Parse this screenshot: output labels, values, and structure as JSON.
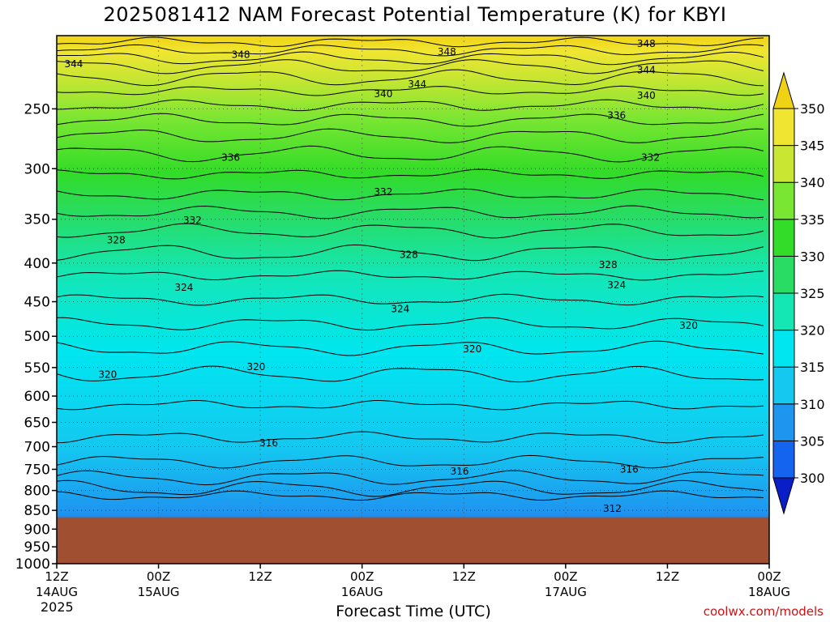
{
  "chart_data": {
    "type": "heatmap",
    "title": "2025081412 NAM Forecast Potential Temperature (K) for KBYI",
    "xlabel": "Forecast Time (UTC)",
    "ylabel": "",
    "y_scale": "log-pressure",
    "ylim_hpa": [
      1000,
      200
    ],
    "xlim_hours": [
      0,
      84
    ],
    "y_ticks": [
      "250",
      "300",
      "350",
      "400",
      "450",
      "500",
      "550",
      "600",
      "650",
      "700",
      "750",
      "800",
      "850",
      "900",
      "950",
      "1000"
    ],
    "x_ticks": [
      {
        "hour": 0,
        "line1": "12Z",
        "line2": "14AUG"
      },
      {
        "hour": 12,
        "line1": "00Z",
        "line2": "15AUG"
      },
      {
        "hour": 24,
        "line1": "12Z",
        "line2": ""
      },
      {
        "hour": 36,
        "line1": "00Z",
        "line2": "16AUG"
      },
      {
        "hour": 48,
        "line1": "12Z",
        "line2": ""
      },
      {
        "hour": 60,
        "line1": "00Z",
        "line2": "17AUG"
      },
      {
        "hour": 72,
        "line1": "12Z",
        "line2": ""
      },
      {
        "hour": 84,
        "line1": "00Z",
        "line2": "18AUG"
      }
    ],
    "year_label": "2025",
    "colorbar": {
      "ticks": [
        "350",
        "345",
        "340",
        "335",
        "330",
        "325",
        "320",
        "315",
        "310",
        "305",
        "300"
      ],
      "levels": [
        300,
        305,
        310,
        315,
        320,
        325,
        330,
        335,
        340,
        345,
        350
      ],
      "colors": [
        "#0a1ec8",
        "#1464f0",
        "#1e96f0",
        "#14c8f0",
        "#00e6f0",
        "#14e6b4",
        "#28dc64",
        "#32dc28",
        "#78e632",
        "#c8e632",
        "#f0e632",
        "#f0d214"
      ],
      "extend": "both"
    },
    "contour_labels": [
      {
        "value": "348",
        "hour": 21.7,
        "hpa": 212
      },
      {
        "value": "348",
        "hour": 46,
        "hpa": 210
      },
      {
        "value": "348",
        "hour": 69.5,
        "hpa": 205
      },
      {
        "value": "344",
        "hour": 2,
        "hpa": 218
      },
      {
        "value": "344",
        "hour": 42.5,
        "hpa": 232
      },
      {
        "value": "344",
        "hour": 69.5,
        "hpa": 222
      },
      {
        "value": "340",
        "hour": 38.5,
        "hpa": 239
      },
      {
        "value": "340",
        "hour": 69.5,
        "hpa": 240
      },
      {
        "value": "336",
        "hour": 20.5,
        "hpa": 290
      },
      {
        "value": "336",
        "hour": 66,
        "hpa": 255
      },
      {
        "value": "332",
        "hour": 16,
        "hpa": 351
      },
      {
        "value": "332",
        "hour": 38.5,
        "hpa": 322
      },
      {
        "value": "332",
        "hour": 70,
        "hpa": 290
      },
      {
        "value": "328",
        "hour": 7,
        "hpa": 373
      },
      {
        "value": "328",
        "hour": 41.5,
        "hpa": 390
      },
      {
        "value": "328",
        "hour": 65,
        "hpa": 402
      },
      {
        "value": "324",
        "hour": 15,
        "hpa": 431
      },
      {
        "value": "324",
        "hour": 40.5,
        "hpa": 460
      },
      {
        "value": "324",
        "hour": 66,
        "hpa": 428
      },
      {
        "value": "320",
        "hour": 6,
        "hpa": 562
      },
      {
        "value": "320",
        "hour": 23.5,
        "hpa": 549
      },
      {
        "value": "320",
        "hour": 49,
        "hpa": 520
      },
      {
        "value": "320",
        "hour": 74.5,
        "hpa": 484
      },
      {
        "value": "316",
        "hour": 25,
        "hpa": 692
      },
      {
        "value": "316",
        "hour": 47.5,
        "hpa": 755
      },
      {
        "value": "316",
        "hour": 67.5,
        "hpa": 750
      },
      {
        "value": "312",
        "hour": 65.5,
        "hpa": 845
      }
    ],
    "ground_color": "#a05030",
    "ground_top_hpa": 868,
    "grid": "dotted"
  },
  "credit": "coolwx.com/models"
}
